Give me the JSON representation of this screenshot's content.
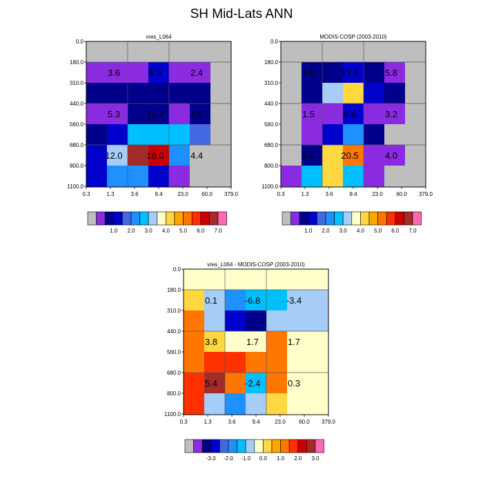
{
  "title": "SH Mid-Lats ANN",
  "chart_data": [
    {
      "type": "heatmap",
      "title": "vres_L064",
      "x_ticks": [
        "0.3",
        "1.3",
        "3.6",
        "9.4",
        "23.0",
        "60.0",
        "379.0"
      ],
      "y_ticks": [
        "0.0",
        "180.0",
        "310.0",
        "440.0",
        "560.0",
        "680.0",
        "800.0",
        "1100.0"
      ],
      "cells": [
        [
          -1,
          -1,
          -1,
          -1,
          -1,
          -1,
          -1
        ],
        [
          0,
          0,
          0,
          2,
          0,
          0,
          -1
        ],
        [
          1,
          1,
          1,
          1,
          1,
          1,
          -1
        ],
        [
          0,
          0,
          1,
          1,
          0,
          1,
          -1
        ],
        [
          1,
          2,
          5,
          5,
          5,
          3,
          -1
        ],
        [
          2,
          6,
          13,
          12,
          4,
          -1,
          -1
        ],
        [
          2,
          4,
          4,
          2,
          0,
          -1,
          -1
        ]
      ],
      "labels": [
        {
          "text": "3.6",
          "col": 0.5,
          "row": 1
        },
        {
          "text": "6.9",
          "col": 2.5,
          "row": 1
        },
        {
          "text": "2.4",
          "col": 4.5,
          "row": 1
        },
        {
          "text": "5.3",
          "col": 0.5,
          "row": 3
        },
        {
          "text": "11.4",
          "col": 2.5,
          "row": 3
        },
        {
          "text": "4.9",
          "col": 4.5,
          "row": 3
        },
        {
          "text": "12.0",
          "col": 0.5,
          "row": 5
        },
        {
          "text": "18.0",
          "col": 2.5,
          "row": 5
        },
        {
          "text": "4.4",
          "col": 4.5,
          "row": 5
        }
      ],
      "colorbar_labels": [
        "1.0",
        "2.0",
        "3.0",
        "4.0",
        "5.0",
        "6.0",
        "7.0"
      ]
    },
    {
      "type": "heatmap",
      "title": "MODIS-COSP (2003-2010)",
      "x_ticks": [
        "0.3",
        "1.3",
        "3.6",
        "9.4",
        "23.0",
        "60.0",
        "379.0"
      ],
      "y_ticks": [
        "0.0",
        "180.0",
        "310.0",
        "440.0",
        "560.0",
        "680.0",
        "800.0",
        "1100.0"
      ],
      "cells": [
        [
          -1,
          -1,
          -1,
          -1,
          -1,
          -1,
          -1
        ],
        [
          -1,
          1,
          1,
          2,
          1,
          0,
          -1
        ],
        [
          -1,
          1,
          6,
          8,
          2,
          1,
          -1
        ],
        [
          -1,
          0,
          0,
          2,
          0,
          0,
          -1
        ],
        [
          -1,
          0,
          2,
          4,
          1,
          -1,
          -1
        ],
        [
          -1,
          1,
          8,
          10,
          0,
          0,
          -1
        ],
        [
          0,
          5,
          8,
          5,
          0,
          -1,
          -1
        ]
      ],
      "labels": [
        {
          "text": "3.8",
          "col": 0.5,
          "row": 1
        },
        {
          "text": "13.6",
          "col": 2.5,
          "row": 1
        },
        {
          "text": "5.8",
          "col": 4.5,
          "row": 1
        },
        {
          "text": "1.5",
          "col": 0.5,
          "row": 3
        },
        {
          "text": "9.6",
          "col": 2.5,
          "row": 3
        },
        {
          "text": "3.2",
          "col": 4.5,
          "row": 3
        },
        {
          "text": "6.5",
          "col": 0.5,
          "row": 5
        },
        {
          "text": "20.5",
          "col": 2.5,
          "row": 5
        },
        {
          "text": "4.0",
          "col": 4.5,
          "row": 5
        }
      ],
      "colorbar_labels": [
        "1.0",
        "2.0",
        "3.0",
        "4.0",
        "5.0",
        "6.0",
        "7.0"
      ]
    },
    {
      "type": "heatmap",
      "title": "vres_L064 - MODIS-COSP (2003-2010)",
      "x_ticks": [
        "0.3",
        "1.3",
        "3.6",
        "9.4",
        "23.0",
        "60.0",
        "379.0"
      ],
      "y_ticks": [
        "0.0",
        "180.0",
        "310.0",
        "440.0",
        "560.0",
        "680.0",
        "800.0",
        "1100.0"
      ],
      "cells": [
        [
          7,
          7,
          7,
          7,
          7,
          7,
          7
        ],
        [
          8,
          6,
          4,
          5,
          5,
          6,
          6
        ],
        [
          10,
          6,
          2,
          1,
          6,
          6,
          6
        ],
        [
          10,
          8,
          7,
          7,
          10,
          7,
          7
        ],
        [
          10,
          11,
          11,
          10,
          10,
          7,
          7
        ],
        [
          11,
          13,
          10,
          5,
          10,
          7,
          7
        ],
        [
          11,
          6,
          4,
          6,
          8,
          7,
          7
        ]
      ],
      "labels": [
        {
          "text": "0.1",
          "col": 0.5,
          "row": 1
        },
        {
          "text": "-6.8",
          "col": 2.5,
          "row": 1
        },
        {
          "text": "-3.4",
          "col": 4.5,
          "row": 1
        },
        {
          "text": "3.8",
          "col": 0.5,
          "row": 3
        },
        {
          "text": "1.7",
          "col": 2.5,
          "row": 3
        },
        {
          "text": "1.7",
          "col": 4.5,
          "row": 3
        },
        {
          "text": "5.4",
          "col": 0.5,
          "row": 5
        },
        {
          "text": "-2.4",
          "col": 2.5,
          "row": 5
        },
        {
          "text": "0.3",
          "col": 4.5,
          "row": 5
        }
      ],
      "colorbar_labels": [
        "-3.0",
        "-2.0",
        "-1.0",
        "0.0",
        "1.0",
        "2.0",
        "3.0"
      ]
    }
  ],
  "palette": [
    "#8a2be2",
    "#00008b",
    "#0000cd",
    "#4169e1",
    "#1e90ff",
    "#00bfff",
    "#a6cdf8",
    "#ffffcc",
    "#ffd740",
    "#ffa500",
    "#ff7700",
    "#ff3000",
    "#cc0000",
    "#a52a2a",
    "#ff69b4"
  ],
  "missing_color": "#bebebe"
}
